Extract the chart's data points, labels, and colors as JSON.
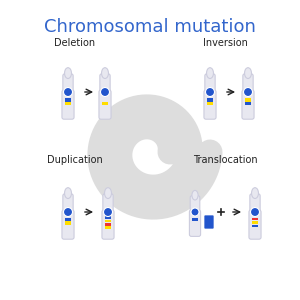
{
  "title": "Chromosomal mutation",
  "title_color": "#3366cc",
  "title_fontsize": 13,
  "background_color": "#ffffff",
  "labels": {
    "deletion": "Deletion",
    "inversion": "Inversion",
    "duplication": "Duplication",
    "translocation": "Translocation"
  },
  "label_fontsize": 7,
  "label_color": "#222222",
  "chr_body_color": "#e8e8f0",
  "chr_outline_color": "#ccccdd",
  "centromere_color": "#2255cc",
  "band_blue": "#2255cc",
  "band_yellow": "#ffdd00",
  "band_red": "#ee3333",
  "arrow_color": "#222222",
  "watermark_color": "#dddddd",
  "plus_color": "#222222"
}
